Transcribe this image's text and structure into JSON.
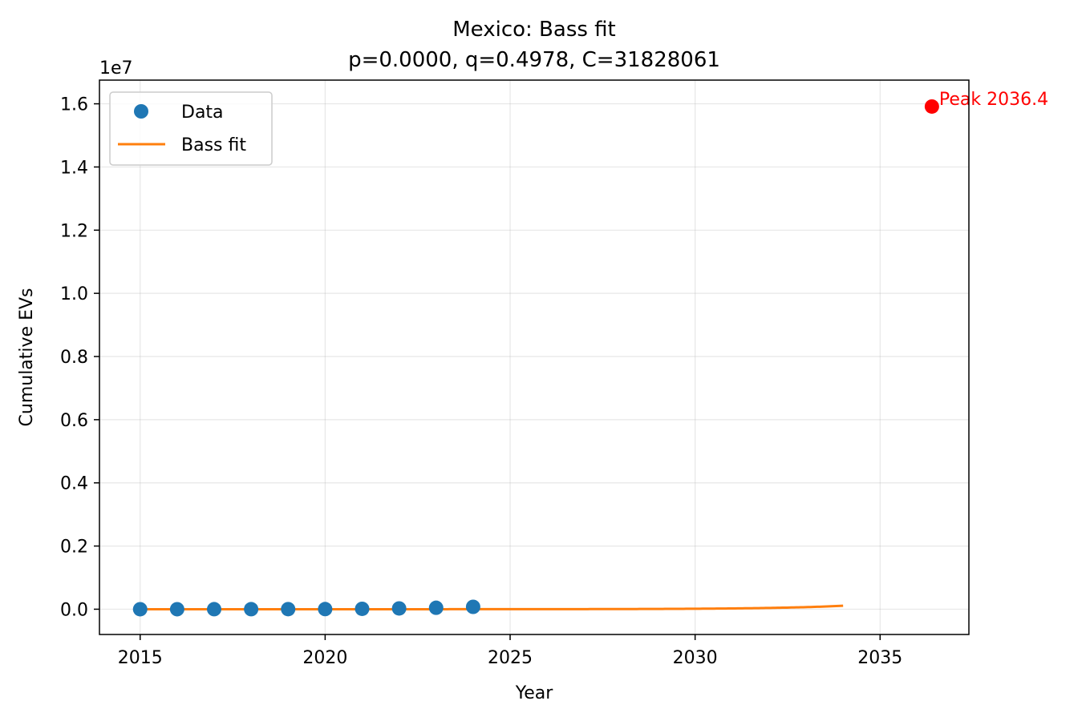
{
  "chart_data": {
    "type": "scatter",
    "title": "Mexico: Bass fit",
    "subtitle": "p=0.0000, q=0.4978, C=31828061",
    "xlabel": "Year",
    "ylabel": "Cumulative EVs",
    "y_offset_label": "1e7",
    "xlim": [
      2013.9,
      2037.4
    ],
    "ylim": [
      -0.08,
      1.675
    ],
    "y_scale_factor": 10000000,
    "x_ticks": [
      2015,
      2020,
      2025,
      2030,
      2035
    ],
    "x_tick_labels": [
      "2015",
      "2020",
      "2025",
      "2030",
      "2035"
    ],
    "y_ticks": [
      0.0,
      0.2,
      0.4,
      0.6,
      0.8,
      1.0,
      1.2,
      1.4,
      1.6
    ],
    "y_tick_labels": [
      "0.0",
      "0.2",
      "0.4",
      "0.6",
      "0.8",
      "1.0",
      "1.2",
      "1.4",
      "1.6"
    ],
    "grid": true,
    "legend_placement": "top-left",
    "series": [
      {
        "name": "Data",
        "kind": "scatter",
        "color": "#1f77b4",
        "x": [
          2015,
          2016,
          2017,
          2018,
          2019,
          2020,
          2021,
          2022,
          2023,
          2024
        ],
        "y": [
          100,
          300,
          600,
          1200,
          2500,
          5000,
          12000,
          25000,
          45000,
          75000
        ]
      },
      {
        "name": "Bass fit",
        "kind": "line",
        "color": "#ff7f0e",
        "p": 1e-07,
        "q": 0.4978,
        "C": 31828061,
        "x_start": 2015,
        "x_end": 2034,
        "t0": 2014.42
      }
    ],
    "peak": {
      "label": "Peak 2036.4",
      "x": 2036.4,
      "y": 15914030,
      "color": "#ff0000"
    }
  }
}
